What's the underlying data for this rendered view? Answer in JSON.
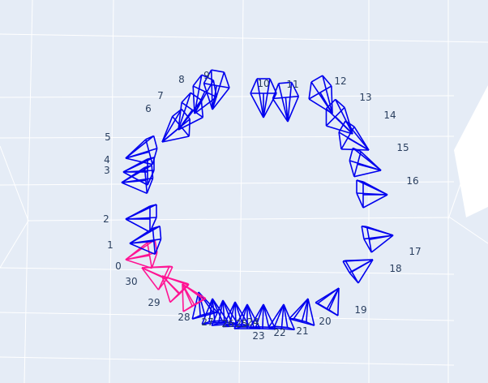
{
  "scene": {
    "background_color": "#e5ecf6",
    "grid_color": "#ffffff",
    "frame_color_default": "#0000ee",
    "frame_color_highlight": "#ff1493",
    "highlighted_frames": [
      "0",
      "30",
      "29",
      "28"
    ]
  },
  "cameras": [
    {
      "label": "0"
    },
    {
      "label": "1"
    },
    {
      "label": "2"
    },
    {
      "label": "3"
    },
    {
      "label": "4"
    },
    {
      "label": "5"
    },
    {
      "label": "6"
    },
    {
      "label": "7"
    },
    {
      "label": "8"
    },
    {
      "label": "9"
    },
    {
      "label": "10"
    },
    {
      "label": "11"
    },
    {
      "label": "12"
    },
    {
      "label": "13"
    },
    {
      "label": "14"
    },
    {
      "label": "15"
    },
    {
      "label": "16"
    },
    {
      "label": "17"
    },
    {
      "label": "18"
    },
    {
      "label": "19"
    },
    {
      "label": "20"
    },
    {
      "label": "21"
    },
    {
      "label": "22"
    },
    {
      "label": "23"
    },
    {
      "label": "24"
    },
    {
      "label": "25"
    },
    {
      "label": "26"
    },
    {
      "label": "27"
    },
    {
      "label": "28"
    },
    {
      "label": "29"
    },
    {
      "label": "30"
    }
  ]
}
